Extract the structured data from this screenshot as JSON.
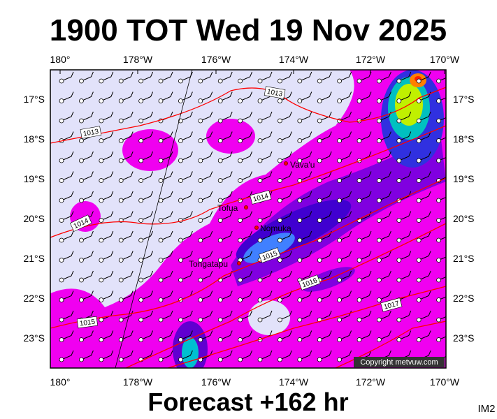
{
  "title": "1900 TOT Wed 19 Nov 2025",
  "footer": "Forecast +162 hr",
  "corner_label": "IM2",
  "copyright": "Copyright metvuw.com",
  "lon_labels": [
    "180°",
    "178°W",
    "176°W",
    "174°W",
    "172°W",
    "170°W"
  ],
  "lat_labels": [
    "17°S",
    "18°S",
    "19°S",
    "20°S",
    "21°S",
    "22°S",
    "23°S"
  ],
  "places": [
    "Vava'u",
    "Tofua",
    "Nomuka",
    "Tongatapu"
  ],
  "isobar_labels": [
    "1013",
    "1013",
    "1014",
    "1014",
    "1015",
    "1016",
    "1017",
    "1015"
  ]
}
